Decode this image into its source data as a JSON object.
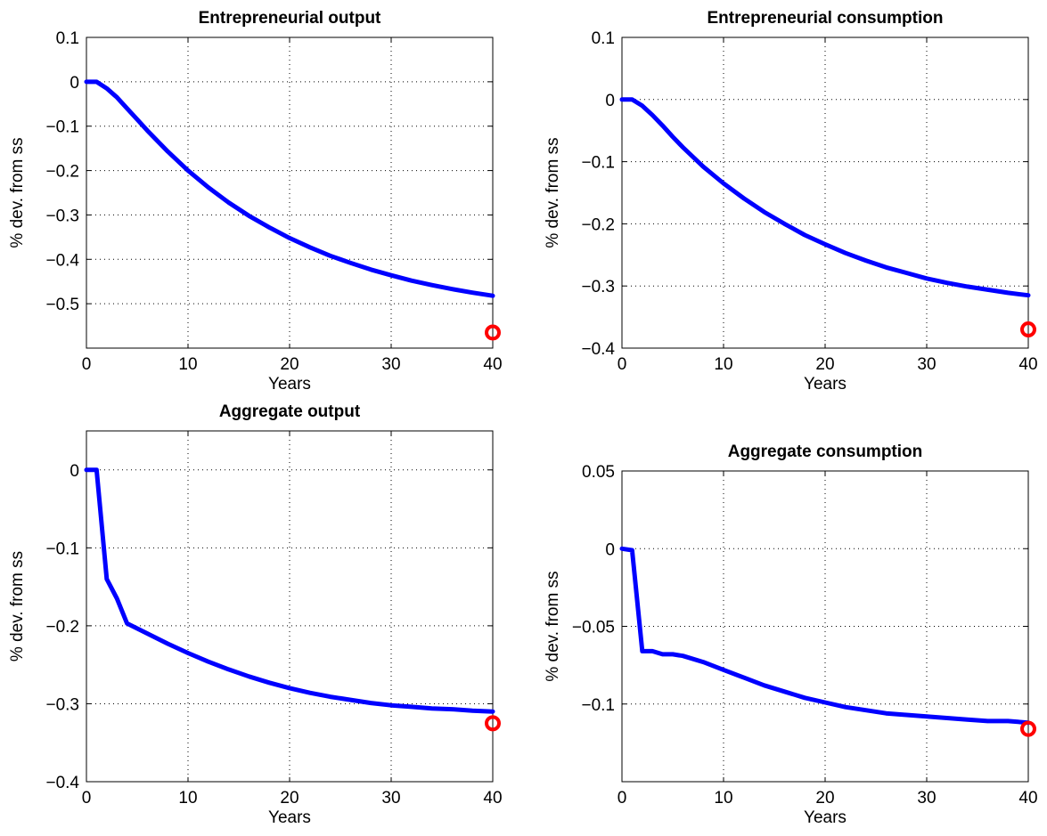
{
  "chart_data": [
    {
      "type": "line",
      "title": "Entrepreneurial output",
      "xlabel": "Years",
      "ylabel": "% dev. from ss",
      "xlim": [
        0,
        40
      ],
      "ylim": [
        -0.6,
        0.1
      ],
      "xticks": [
        "0",
        "10",
        "20",
        "30",
        "40"
      ],
      "yticks": [
        {
          "v": 0.1,
          "label": "0.1"
        },
        {
          "v": 0,
          "label": "0"
        },
        {
          "v": -0.1,
          "label": "−0.1"
        },
        {
          "v": -0.2,
          "label": "−0.2"
        },
        {
          "v": -0.3,
          "label": "−0.3"
        },
        {
          "v": -0.4,
          "label": "−0.4"
        },
        {
          "v": -0.5,
          "label": "−0.5"
        }
      ],
      "grid": true,
      "series": [
        {
          "x": [
            0,
            1,
            2,
            3,
            4,
            5,
            6,
            8,
            10,
            12,
            14,
            16,
            18,
            20,
            22,
            24,
            26,
            28,
            30,
            32,
            34,
            36,
            38,
            40
          ],
          "values": [
            0,
            0,
            -0.015,
            -0.035,
            -0.06,
            -0.085,
            -0.11,
            -0.157,
            -0.2,
            -0.238,
            -0.272,
            -0.302,
            -0.328,
            -0.352,
            -0.373,
            -0.392,
            -0.408,
            -0.423,
            -0.436,
            -0.448,
            -0.458,
            -0.467,
            -0.475,
            -0.482
          ]
        }
      ],
      "marker": {
        "x": 40,
        "y": -0.565
      }
    },
    {
      "type": "line",
      "title": "Entrepreneurial consumption",
      "xlabel": "Years",
      "ylabel": "% dev. from ss",
      "xlim": [
        0,
        40
      ],
      "ylim": [
        -0.4,
        0.1
      ],
      "xticks": [
        "0",
        "10",
        "20",
        "30",
        "40"
      ],
      "yticks": [
        {
          "v": 0.1,
          "label": "0.1"
        },
        {
          "v": 0,
          "label": "0"
        },
        {
          "v": -0.1,
          "label": "−0.1"
        },
        {
          "v": -0.2,
          "label": "−0.2"
        },
        {
          "v": -0.3,
          "label": "−0.3"
        },
        {
          "v": -0.4,
          "label": "−0.4"
        }
      ],
      "grid": true,
      "series": [
        {
          "x": [
            0,
            1,
            2,
            3,
            4,
            5,
            6,
            8,
            10,
            12,
            14,
            16,
            18,
            20,
            22,
            24,
            26,
            28,
            30,
            32,
            34,
            36,
            38,
            40
          ],
          "values": [
            0,
            0,
            -0.01,
            -0.025,
            -0.042,
            -0.06,
            -0.077,
            -0.108,
            -0.135,
            -0.159,
            -0.181,
            -0.2,
            -0.218,
            -0.233,
            -0.247,
            -0.259,
            -0.27,
            -0.279,
            -0.288,
            -0.295,
            -0.301,
            -0.306,
            -0.311,
            -0.315
          ]
        }
      ],
      "marker": {
        "x": 40,
        "y": -0.37
      }
    },
    {
      "type": "line",
      "title": "Aggregate output",
      "xlabel": "Years",
      "ylabel": "% dev. from ss",
      "xlim": [
        0,
        40
      ],
      "ylim": [
        -0.4,
        0.05
      ],
      "xticks": [
        "0",
        "10",
        "20",
        "30",
        "40"
      ],
      "yticks": [
        {
          "v": 0,
          "label": "0"
        },
        {
          "v": -0.1,
          "label": "−0.1"
        },
        {
          "v": -0.2,
          "label": "−0.2"
        },
        {
          "v": -0.3,
          "label": "−0.3"
        },
        {
          "v": -0.4,
          "label": "−0.4"
        }
      ],
      "grid": true,
      "series": [
        {
          "x": [
            0,
            1,
            2,
            3,
            4,
            6,
            8,
            10,
            12,
            14,
            16,
            18,
            20,
            22,
            24,
            26,
            28,
            30,
            32,
            34,
            36,
            38,
            40
          ],
          "values": [
            0,
            0,
            -0.14,
            -0.165,
            -0.197,
            -0.21,
            -0.223,
            -0.235,
            -0.246,
            -0.256,
            -0.265,
            -0.273,
            -0.28,
            -0.286,
            -0.291,
            -0.295,
            -0.299,
            -0.302,
            -0.304,
            -0.306,
            -0.307,
            -0.309,
            -0.31
          ]
        }
      ],
      "marker": {
        "x": 40,
        "y": -0.325
      }
    },
    {
      "type": "line",
      "title": "Aggregate consumption",
      "xlabel": "Years",
      "ylabel": "% dev. from ss",
      "xlim": [
        0,
        40
      ],
      "ylim": [
        -0.15,
        0.05
      ],
      "xticks": [
        "0",
        "10",
        "20",
        "30",
        "40"
      ],
      "yticks": [
        {
          "v": 0.05,
          "label": "0.05"
        },
        {
          "v": 0,
          "label": "0"
        },
        {
          "v": -0.05,
          "label": "−0.05"
        },
        {
          "v": -0.1,
          "label": "−0.1"
        }
      ],
      "grid": true,
      "series": [
        {
          "x": [
            0,
            1,
            2,
            3,
            4,
            5,
            6,
            8,
            10,
            12,
            14,
            16,
            18,
            20,
            22,
            24,
            26,
            28,
            30,
            32,
            34,
            36,
            38,
            40
          ],
          "values": [
            0,
            -0.001,
            -0.066,
            -0.066,
            -0.068,
            -0.068,
            -0.069,
            -0.073,
            -0.078,
            -0.083,
            -0.088,
            -0.092,
            -0.096,
            -0.099,
            -0.102,
            -0.104,
            -0.106,
            -0.107,
            -0.108,
            -0.109,
            -0.11,
            -0.111,
            -0.111,
            -0.112
          ]
        }
      ],
      "marker": {
        "x": 40,
        "y": -0.116
      }
    }
  ]
}
